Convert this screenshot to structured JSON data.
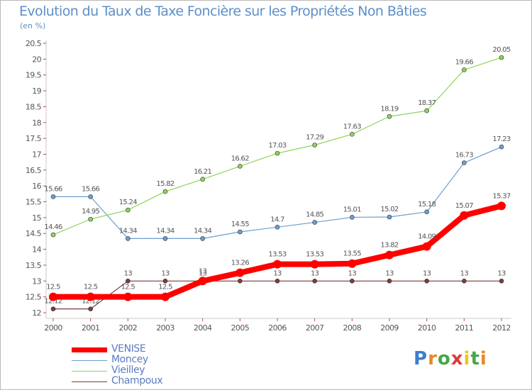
{
  "chart_data": {
    "type": "line",
    "title": "Evolution du Taux de Taxe Foncière sur les Propriétés Non Bâties",
    "ylabel": "(en %)",
    "xlabel": "",
    "x": [
      "2000",
      "2001",
      "2002",
      "2003",
      "2004",
      "2005",
      "2006",
      "2007",
      "2008",
      "2009",
      "2010",
      "2011",
      "2012"
    ],
    "ylim": [
      12,
      20.5
    ],
    "yticks": [
      "12",
      "12.5",
      "13",
      "13.5",
      "14",
      "14.5",
      "15",
      "15.5",
      "16",
      "16.5",
      "17",
      "17.5",
      "18",
      "18.5",
      "19",
      "19.5",
      "20",
      "20.5"
    ],
    "grid": false,
    "legend_position": "bottom-left",
    "series": [
      {
        "name": "VENISE",
        "color": "#ff0000",
        "values": [
          12.5,
          12.5,
          12.5,
          12.5,
          13,
          13.26,
          13.53,
          13.53,
          13.55,
          13.82,
          14.09,
          15.07,
          15.37
        ],
        "labels": [
          "12.5",
          "12.5",
          "12.5",
          "12.5",
          "13",
          "13.26",
          "13.53",
          "13.53",
          "13.55",
          "13.82",
          "14.09",
          "15.07",
          "15.37"
        ]
      },
      {
        "name": "Moncey",
        "color": "#6a9ed0",
        "values": [
          15.66,
          15.66,
          14.34,
          14.34,
          14.34,
          14.55,
          14.7,
          14.85,
          15.01,
          15.02,
          15.18,
          16.73,
          17.23
        ],
        "labels": [
          "15.66",
          "15.66",
          "14.34",
          "14.34",
          "14.34",
          "14.55",
          "14.7",
          "14.85",
          "15.01",
          "15.02",
          "15.18",
          "16.73",
          "17.23"
        ]
      },
      {
        "name": "Vieilley",
        "color": "#8fd35a",
        "values": [
          14.46,
          14.95,
          15.24,
          15.82,
          16.21,
          16.62,
          17.03,
          17.29,
          17.63,
          18.19,
          18.37,
          19.66,
          20.05
        ],
        "labels": [
          "14.46",
          "14.95",
          "15.24",
          "15.82",
          "16.21",
          "16.62",
          "17.03",
          "17.29",
          "17.63",
          "18.19",
          "18.37",
          "19.66",
          "20.05"
        ]
      },
      {
        "name": "Champoux",
        "color": "#7a3c3c",
        "values": [
          12.12,
          12.12,
          13,
          13,
          13,
          13,
          13,
          13,
          13,
          13,
          13,
          13,
          13
        ],
        "labels": [
          "12.12",
          "12.12",
          "13",
          "13",
          "13",
          "13",
          "13",
          "13",
          "13",
          "13",
          "13",
          "13",
          "13"
        ]
      }
    ]
  },
  "logo": {
    "letters": [
      "P",
      "r",
      "o",
      "x",
      "i",
      "t",
      "i"
    ],
    "colors": [
      "#3a7fd0",
      "#e8882a",
      "#46a64a",
      "#e03a3a",
      "#e8c52a",
      "#46a64a",
      "#e8882a"
    ]
  }
}
